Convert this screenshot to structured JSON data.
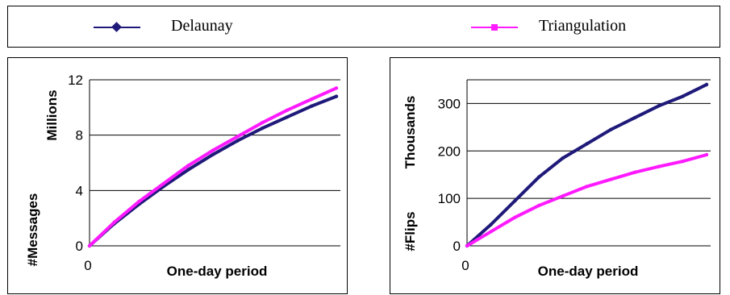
{
  "legend": {
    "items": [
      {
        "label": "Delaunay",
        "color": "#1f1a7a",
        "marker": "diamond"
      },
      {
        "label": "Triangulation",
        "color": "#ff1aff",
        "marker": "square"
      }
    ]
  },
  "chart_data": [
    {
      "type": "line",
      "title": "",
      "xlabel": "One-day period",
      "ylabel": "#Messages",
      "yunit": "Millions",
      "x": [
        0,
        0.1,
        0.2,
        0.3,
        0.4,
        0.5,
        0.6,
        0.7,
        0.8,
        0.9,
        1.0
      ],
      "x_tick_labels": [
        "0"
      ],
      "y_ticks": [
        0,
        4,
        8,
        12
      ],
      "y_tick_labels": [
        "0",
        "4",
        "8",
        "12"
      ],
      "ylim": [
        0,
        12
      ],
      "grid": true,
      "series": [
        {
          "name": "Delaunay",
          "color": "#1f1a7a",
          "values": [
            0,
            1.6,
            3.0,
            4.3,
            5.5,
            6.6,
            7.6,
            8.5,
            9.3,
            10.1,
            10.8
          ]
        },
        {
          "name": "Triangulation",
          "color": "#ff1aff",
          "values": [
            0,
            1.7,
            3.2,
            4.5,
            5.8,
            6.9,
            7.9,
            8.9,
            9.8,
            10.6,
            11.4
          ]
        }
      ]
    },
    {
      "type": "line",
      "title": "",
      "xlabel": "One-day period",
      "ylabel": "#Flips",
      "yunit": "Thousands",
      "x": [
        0,
        0.1,
        0.2,
        0.3,
        0.4,
        0.5,
        0.6,
        0.7,
        0.8,
        0.9,
        1.0
      ],
      "x_tick_labels": [
        "0"
      ],
      "y_ticks": [
        0,
        100,
        200,
        300
      ],
      "y_tick_labels": [
        "0",
        "100",
        "200",
        "300"
      ],
      "ylim": [
        0,
        350
      ],
      "grid": true,
      "series": [
        {
          "name": "Delaunay",
          "color": "#1f1a7a",
          "values": [
            0,
            45,
            95,
            145,
            185,
            215,
            245,
            270,
            295,
            315,
            340
          ]
        },
        {
          "name": "Triangulation",
          "color": "#ff1aff",
          "values": [
            0,
            30,
            60,
            85,
            105,
            125,
            140,
            155,
            167,
            178,
            192
          ]
        }
      ]
    }
  ]
}
